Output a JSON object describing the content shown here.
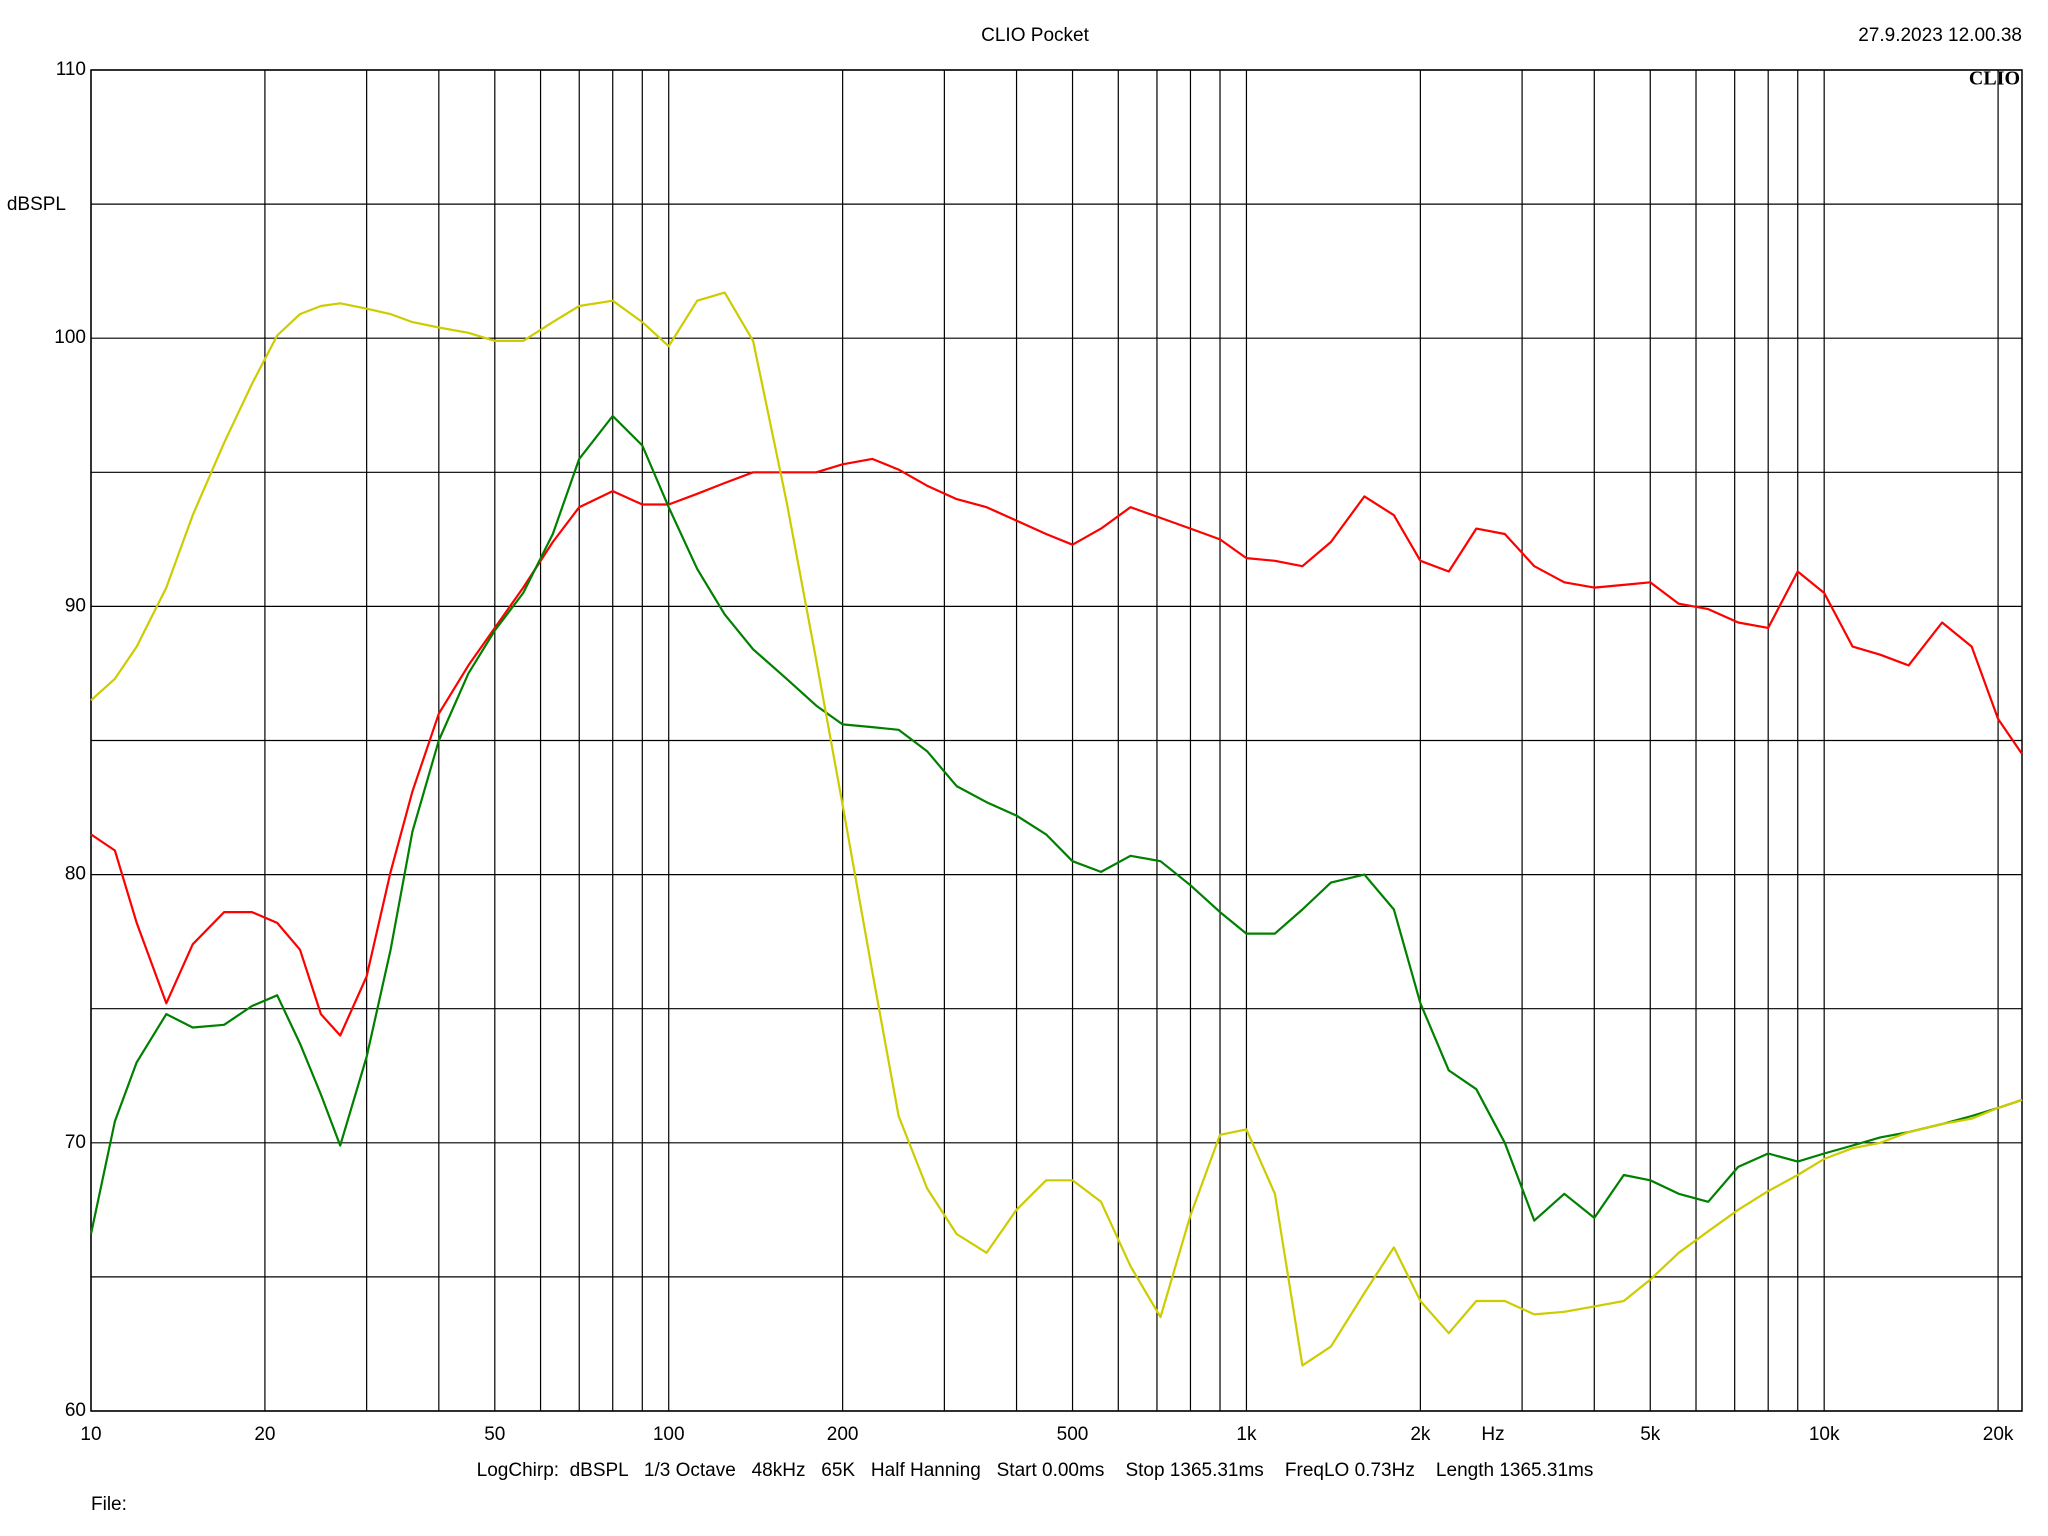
{
  "chart_data": {
    "type": "line",
    "title": "CLIO Pocket",
    "timestamp": "27.9.2023 12.00.38",
    "logo": "CLIO",
    "y_label": "dBSPL",
    "x_label": "Hz",
    "footer": "LogChirp:  dBSPL   1/3 Octave   48kHz   65K   Half Hanning   Start 0.00ms    Stop 1365.31ms    FreqLO 0.73Hz    Length 1365.31ms",
    "file_label": "File:",
    "x_log": true,
    "grid": true,
    "xlim": [
      10,
      22000
    ],
    "ylim": [
      60,
      110
    ],
    "xticks": [
      10,
      20,
      50,
      100,
      200,
      500,
      {
        "value": 1000,
        "label": "1k"
      },
      {
        "value": 2000,
        "label": "2k"
      },
      {
        "value": 5000,
        "label": "5k"
      },
      {
        "value": 10000,
        "label": "10k"
      },
      {
        "value": 20000,
        "label": "20k"
      }
    ],
    "xminor": [
      30,
      40,
      60,
      70,
      80,
      90,
      300,
      400,
      600,
      700,
      800,
      900,
      3000,
      4000,
      6000,
      7000,
      8000,
      9000
    ],
    "yticks": [
      60,
      70,
      80,
      90,
      100,
      110
    ],
    "yminor": [
      65,
      75,
      85,
      95,
      105
    ],
    "x": [
      10,
      11,
      12,
      13.5,
      15,
      17,
      19,
      21,
      23,
      25,
      27,
      30,
      33,
      36,
      40,
      45,
      50,
      56,
      63,
      70,
      80,
      90,
      100,
      112,
      125,
      140,
      160,
      180,
      200,
      225,
      250,
      280,
      315,
      355,
      400,
      450,
      500,
      560,
      630,
      710,
      800,
      900,
      1000,
      1120,
      1250,
      1400,
      1600,
      1800,
      2000,
      2240,
      2500,
      2800,
      3150,
      3550,
      4000,
      4500,
      5000,
      5600,
      6300,
      7100,
      8000,
      9000,
      10000,
      11200,
      12500,
      14000,
      16000,
      18000,
      20000,
      22000
    ],
    "series": [
      {
        "color": "#ff0000",
        "values": [
          81.5,
          80.9,
          78.2,
          75.2,
          77.4,
          78.6,
          78.6,
          78.2,
          77.2,
          74.8,
          74.0,
          76.2,
          80.1,
          83.1,
          86.0,
          87.8,
          89.2,
          90.7,
          92.4,
          93.7,
          94.3,
          93.8,
          93.8,
          94.2,
          94.6,
          95.0,
          95.0,
          95.0,
          95.3,
          95.5,
          95.1,
          94.5,
          94.0,
          93.7,
          93.2,
          92.7,
          92.3,
          92.9,
          93.7,
          93.3,
          92.9,
          92.5,
          91.8,
          91.7,
          91.5,
          92.4,
          94.1,
          93.4,
          91.7,
          91.3,
          92.9,
          92.7,
          91.5,
          90.9,
          90.7,
          90.8,
          90.9,
          90.1,
          89.9,
          89.4,
          89.2,
          91.3,
          90.5,
          88.5,
          88.2,
          87.8,
          89.4,
          88.5,
          85.8,
          84.5
        ]
      },
      {
        "color": "#008000",
        "values": [
          66.6,
          70.8,
          73.0,
          74.8,
          74.3,
          74.4,
          75.1,
          75.5,
          73.7,
          71.8,
          69.9,
          73.2,
          77.2,
          81.6,
          85.0,
          87.5,
          89.1,
          90.5,
          92.7,
          95.5,
          97.1,
          96.0,
          93.7,
          91.4,
          89.7,
          88.4,
          87.3,
          86.3,
          85.6,
          85.5,
          85.4,
          84.6,
          83.3,
          82.7,
          82.2,
          81.5,
          80.5,
          80.1,
          80.7,
          80.5,
          79.6,
          78.6,
          77.8,
          77.8,
          78.7,
          79.7,
          80.0,
          78.7,
          75.2,
          72.7,
          72.0,
          70.0,
          67.1,
          68.1,
          67.2,
          68.8,
          68.6,
          68.1,
          67.8,
          69.1,
          69.6,
          69.3,
          69.6,
          69.9,
          70.2,
          70.4,
          70.7,
          71.0,
          71.3,
          71.6
        ]
      },
      {
        "color": "#cccc00",
        "values": [
          86.5,
          87.3,
          88.5,
          90.7,
          93.4,
          96.1,
          98.3,
          100.1,
          100.9,
          101.2,
          101.3,
          101.1,
          100.9,
          100.6,
          100.4,
          100.2,
          99.9,
          99.9,
          100.6,
          101.2,
          101.4,
          100.6,
          99.7,
          101.4,
          101.7,
          99.9,
          93.9,
          88.0,
          82.6,
          76.4,
          71.0,
          68.3,
          66.6,
          65.9,
          67.5,
          68.6,
          68.6,
          67.8,
          65.4,
          63.5,
          67.3,
          70.3,
          70.5,
          68.1,
          61.7,
          62.4,
          64.4,
          66.1,
          64.1,
          62.9,
          64.1,
          64.1,
          63.6,
          63.7,
          63.9,
          64.1,
          64.9,
          65.9,
          66.7,
          67.5,
          68.2,
          68.8,
          69.4,
          69.8,
          70.0,
          70.4,
          70.7,
          70.9,
          71.3,
          71.6
        ]
      }
    ]
  }
}
